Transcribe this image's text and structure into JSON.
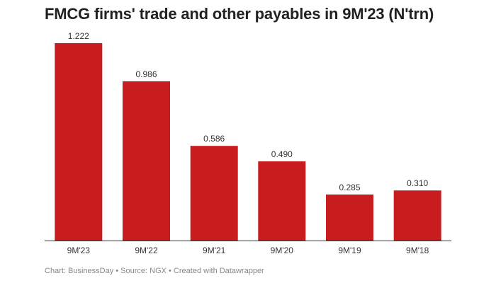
{
  "title": "FMCG firms' trade and other payables in 9M'23 (N'trn)",
  "footer": "Chart: BusinessDay • Source: NGX • Created with Datawrapper",
  "colors": {
    "bar": "#c81d1e",
    "axis": "#333333"
  },
  "chart_data": {
    "type": "bar",
    "title": "FMCG firms' trade and other payables in 9M'23 (N'trn)",
    "categories": [
      "9M'23",
      "9M'22",
      "9M'21",
      "9M'20",
      "9M'19",
      "9M'18"
    ],
    "values": [
      1.222,
      0.986,
      0.586,
      0.49,
      0.285,
      0.31
    ],
    "value_labels": [
      "1.222",
      "0.986",
      "0.586",
      "0.490",
      "0.285",
      "0.310"
    ],
    "ylim": [
      0,
      1.222
    ],
    "grid": false,
    "legend": "none"
  }
}
